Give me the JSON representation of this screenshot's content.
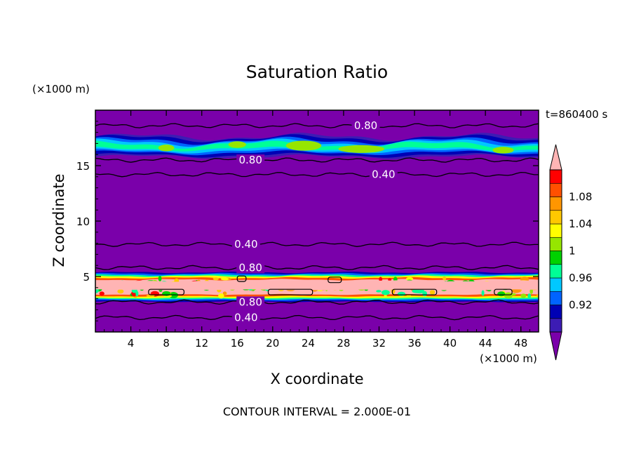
{
  "chart_data": {
    "type": "heatmap",
    "title": "Saturation Ratio",
    "xlabel": "X coordinate",
    "ylabel": "Z coordinate",
    "x_unit": "(×1000 m)",
    "z_unit": "(×1000 m)",
    "time_label": "t=860400 s",
    "footer": "CONTOUR INTERVAL = 2.000E-01",
    "xlim": [
      0,
      50
    ],
    "ylim": [
      0,
      20
    ],
    "x_ticks": [
      4,
      8,
      12,
      16,
      20,
      24,
      28,
      32,
      36,
      40,
      44,
      48
    ],
    "y_ticks": [
      5,
      10,
      15
    ],
    "colorbar": {
      "levels": [
        0.92,
        0.96,
        1,
        1.04,
        1.08
      ],
      "level_labels": [
        "0.92",
        "0.96",
        "1",
        "1.04",
        "1.08"
      ],
      "colors": [
        "#7a00aa",
        "#3c1cb4",
        "#0000b4",
        "#0064ff",
        "#00c8ff",
        "#00ff96",
        "#00d200",
        "#96e600",
        "#ffff00",
        "#ffc800",
        "#ff9600",
        "#ff5000",
        "#ff0000",
        "#ffb4b4"
      ]
    },
    "contour_lines": [
      {
        "z": 18.6,
        "label": "0.80",
        "label_x": 30.5
      },
      {
        "z": 15.5,
        "label": "0.80",
        "label_x": 17.5
      },
      {
        "z": 14.2,
        "label": "0.40",
        "label_x": 32.5
      },
      {
        "z": 7.9,
        "label": "0.40",
        "label_x": 17.0
      },
      {
        "z": 5.8,
        "label": "0.80",
        "label_x": 17.5
      },
      {
        "z": 2.7,
        "label": "0.80",
        "label_x": 17.5
      },
      {
        "z": 1.3,
        "label": "0.40",
        "label_x": 17.0
      }
    ],
    "bands": [
      {
        "zmin": 15.8,
        "zmax": 17.6,
        "peak": 1.02,
        "description_color": "#00c8ff"
      },
      {
        "zmin": 2.9,
        "zmax": 5.2,
        "peak": 1.1,
        "description_color": "#ffb4b4"
      }
    ]
  }
}
